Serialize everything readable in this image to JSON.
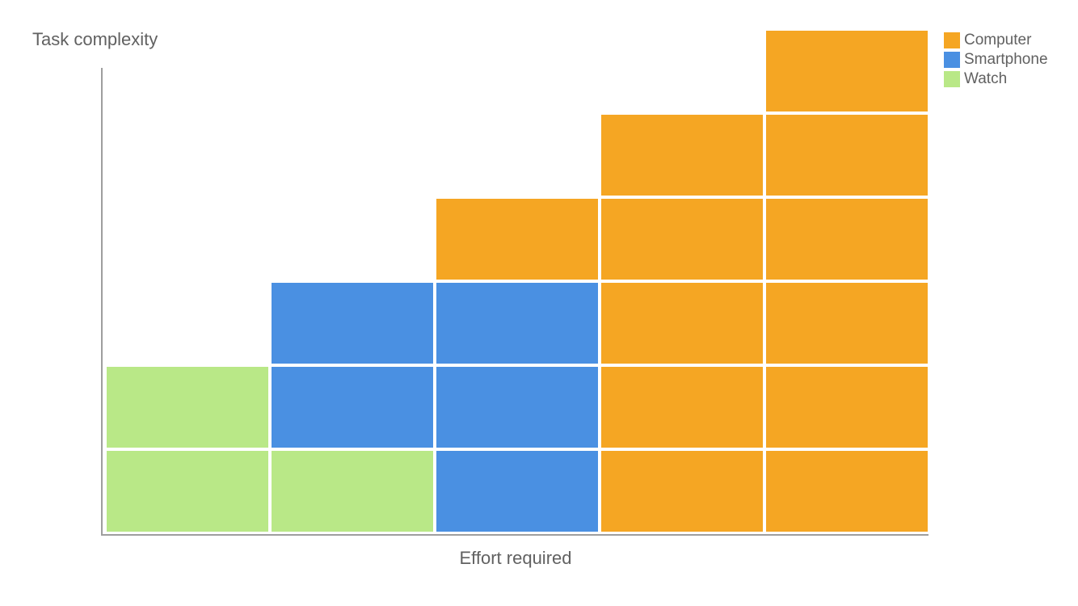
{
  "chart_data": {
    "type": "bar",
    "stacked": true,
    "title": "",
    "xlabel": "Effort required",
    "ylabel": "Task complexity",
    "categories": [
      "",
      "",
      "",
      "",
      ""
    ],
    "ylim": [
      0,
      6
    ],
    "grid": false,
    "legend_position": "top-right",
    "series": [
      {
        "name": "Watch",
        "color": "#b9e887",
        "values": [
          2,
          1,
          0,
          0,
          0
        ]
      },
      {
        "name": "Smartphone",
        "color": "#4a90e2",
        "values": [
          0,
          2,
          3,
          0,
          0
        ]
      },
      {
        "name": "Computer",
        "color": "#f5a623",
        "values": [
          0,
          0,
          1,
          5,
          6
        ]
      }
    ],
    "legend_order": [
      "Computer",
      "Smartphone",
      "Watch"
    ]
  }
}
